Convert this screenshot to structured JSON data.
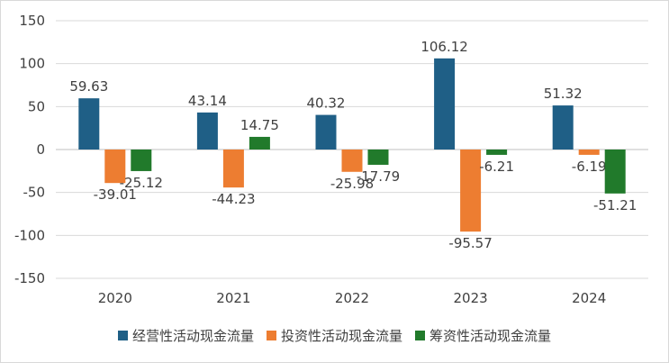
{
  "chart_data": {
    "type": "bar",
    "categories": [
      "2020",
      "2021",
      "2022",
      "2023",
      "2024"
    ],
    "series": [
      {
        "name": "经营性活动现金流量",
        "color": "#1f5f86",
        "values": [
          59.63,
          43.14,
          40.32,
          106.12,
          51.32
        ],
        "labels": [
          "59.63",
          "43.14",
          "40.32",
          "106.12",
          "51.32"
        ]
      },
      {
        "name": "投资性活动现金流量",
        "color": "#ed7d31",
        "values": [
          -39.01,
          -44.23,
          -25.98,
          -95.57,
          -6.19
        ],
        "labels": [
          "-39.01",
          "-44.23",
          "-25.98",
          "-95.57",
          "-6.19"
        ]
      },
      {
        "name": "筹资性活动现金流量",
        "color": "#217a2b",
        "values": [
          -25.12,
          14.75,
          -17.79,
          -6.21,
          -51.21
        ],
        "labels": [
          "-25.12",
          "14.75",
          "-17.79",
          "-6.21",
          "-51.21"
        ]
      }
    ],
    "yticks": [
      "150",
      "100",
      "50",
      "0",
      "-50",
      "-100",
      "-150"
    ],
    "ylim": [
      -150,
      150
    ],
    "grid": true,
    "legend": "bottom"
  }
}
